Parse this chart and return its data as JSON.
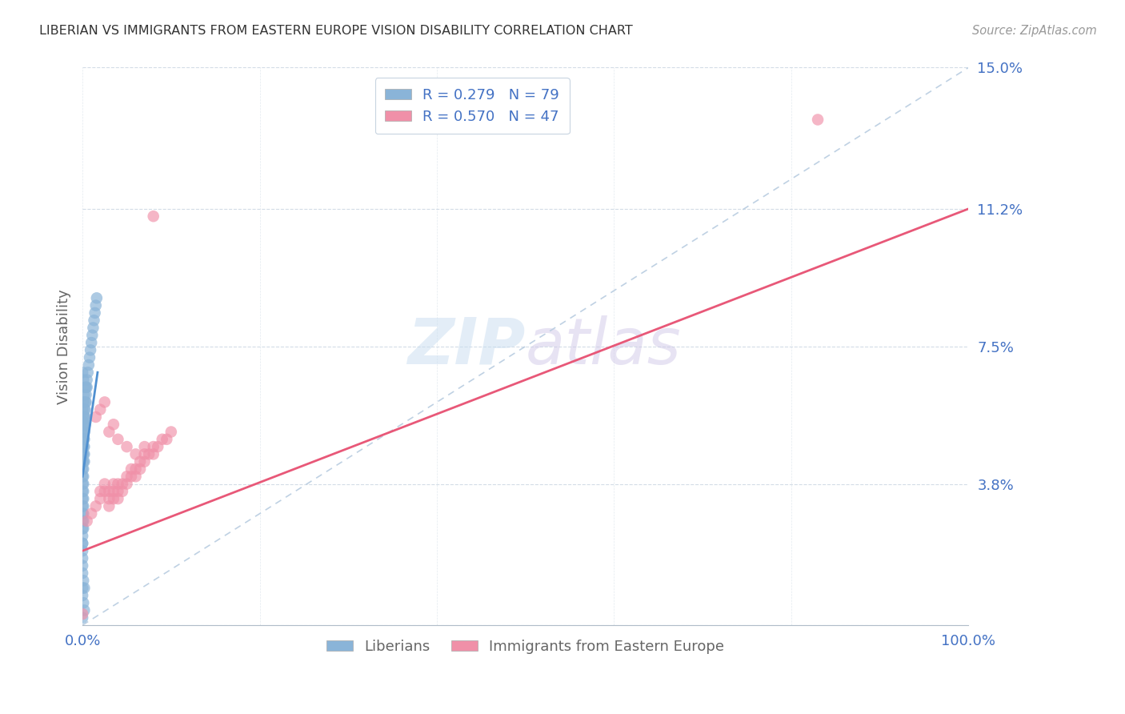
{
  "title": "LIBERIAN VS IMMIGRANTS FROM EASTERN EUROPE VISION DISABILITY CORRELATION CHART",
  "source": "Source: ZipAtlas.com",
  "ylabel": "Vision Disability",
  "xlim": [
    0,
    1.0
  ],
  "ylim": [
    0,
    0.15
  ],
  "ytick_vals": [
    0.0,
    0.038,
    0.075,
    0.112,
    0.15
  ],
  "ytick_labels": [
    "",
    "3.8%",
    "7.5%",
    "11.2%",
    "15.0%"
  ],
  "xtick_vals": [
    0.0,
    0.2,
    0.4,
    0.6,
    0.8,
    1.0
  ],
  "xtick_labels": [
    "0.0%",
    "",
    "",
    "",
    "",
    "100.0%"
  ],
  "watermark_zip": "ZIP",
  "watermark_atlas": "atlas",
  "blue_color": "#8ab4d8",
  "pink_color": "#f090a8",
  "trendline_blue_color": "#5090d0",
  "trendline_pink_color": "#e85878",
  "diagonal_color": "#b8cce0",
  "blue_label": "R = 0.279   N = 79",
  "pink_label": "R = 0.570   N = 47",
  "legend_label_blue": "Liberians",
  "legend_label_pink": "Immigrants from Eastern Europe",
  "blue_scatter_x": [
    0.0,
    0.0,
    0.0,
    0.0,
    0.0,
    0.0,
    0.0,
    0.0,
    0.0,
    0.0,
    0.0,
    0.0,
    0.0,
    0.0,
    0.0,
    0.0,
    0.0,
    0.0,
    0.0,
    0.0,
    0.001,
    0.001,
    0.001,
    0.001,
    0.001,
    0.001,
    0.001,
    0.001,
    0.001,
    0.001,
    0.001,
    0.001,
    0.001,
    0.001,
    0.001,
    0.002,
    0.002,
    0.002,
    0.002,
    0.002,
    0.002,
    0.002,
    0.002,
    0.003,
    0.003,
    0.003,
    0.003,
    0.004,
    0.004,
    0.004,
    0.005,
    0.005,
    0.006,
    0.007,
    0.008,
    0.009,
    0.01,
    0.011,
    0.012,
    0.013,
    0.014,
    0.015,
    0.016,
    0.0,
    0.001,
    0.002,
    0.0,
    0.001,
    0.002,
    0.0,
    0.001,
    0.002,
    0.003,
    0.001,
    0.0,
    0.001,
    0.0,
    0.0,
    0.0
  ],
  "blue_scatter_y": [
    0.055,
    0.052,
    0.05,
    0.048,
    0.046,
    0.044,
    0.042,
    0.04,
    0.038,
    0.036,
    0.034,
    0.032,
    0.03,
    0.028,
    0.026,
    0.024,
    0.022,
    0.02,
    0.018,
    0.016,
    0.056,
    0.054,
    0.052,
    0.05,
    0.048,
    0.046,
    0.044,
    0.042,
    0.04,
    0.038,
    0.036,
    0.034,
    0.032,
    0.03,
    0.028,
    0.058,
    0.056,
    0.054,
    0.052,
    0.05,
    0.048,
    0.046,
    0.044,
    0.06,
    0.058,
    0.056,
    0.054,
    0.064,
    0.062,
    0.06,
    0.066,
    0.064,
    0.068,
    0.07,
    0.072,
    0.074,
    0.076,
    0.078,
    0.08,
    0.082,
    0.084,
    0.086,
    0.088,
    0.014,
    0.012,
    0.01,
    0.008,
    0.006,
    0.004,
    0.058,
    0.06,
    0.062,
    0.064,
    0.066,
    0.002,
    0.026,
    0.068,
    0.022,
    0.01
  ],
  "pink_scatter_x": [
    0.0,
    0.005,
    0.01,
    0.015,
    0.02,
    0.02,
    0.025,
    0.025,
    0.03,
    0.03,
    0.03,
    0.035,
    0.035,
    0.035,
    0.04,
    0.04,
    0.04,
    0.045,
    0.045,
    0.05,
    0.05,
    0.055,
    0.055,
    0.06,
    0.06,
    0.065,
    0.065,
    0.07,
    0.07,
    0.075,
    0.08,
    0.08,
    0.085,
    0.09,
    0.095,
    0.1,
    0.015,
    0.02,
    0.025,
    0.03,
    0.035,
    0.04,
    0.05,
    0.06,
    0.07,
    0.08,
    0.83
  ],
  "pink_scatter_y": [
    0.003,
    0.028,
    0.03,
    0.032,
    0.034,
    0.036,
    0.036,
    0.038,
    0.032,
    0.034,
    0.036,
    0.034,
    0.036,
    0.038,
    0.034,
    0.036,
    0.038,
    0.036,
    0.038,
    0.038,
    0.04,
    0.04,
    0.042,
    0.04,
    0.042,
    0.042,
    0.044,
    0.044,
    0.046,
    0.046,
    0.046,
    0.048,
    0.048,
    0.05,
    0.05,
    0.052,
    0.056,
    0.058,
    0.06,
    0.052,
    0.054,
    0.05,
    0.048,
    0.046,
    0.048,
    0.11,
    0.136
  ],
  "blue_trend_x": [
    0.0,
    0.017
  ],
  "blue_trend_y": [
    0.04,
    0.068
  ],
  "pink_trend_x": [
    0.0,
    1.0
  ],
  "pink_trend_y": [
    0.02,
    0.112
  ]
}
